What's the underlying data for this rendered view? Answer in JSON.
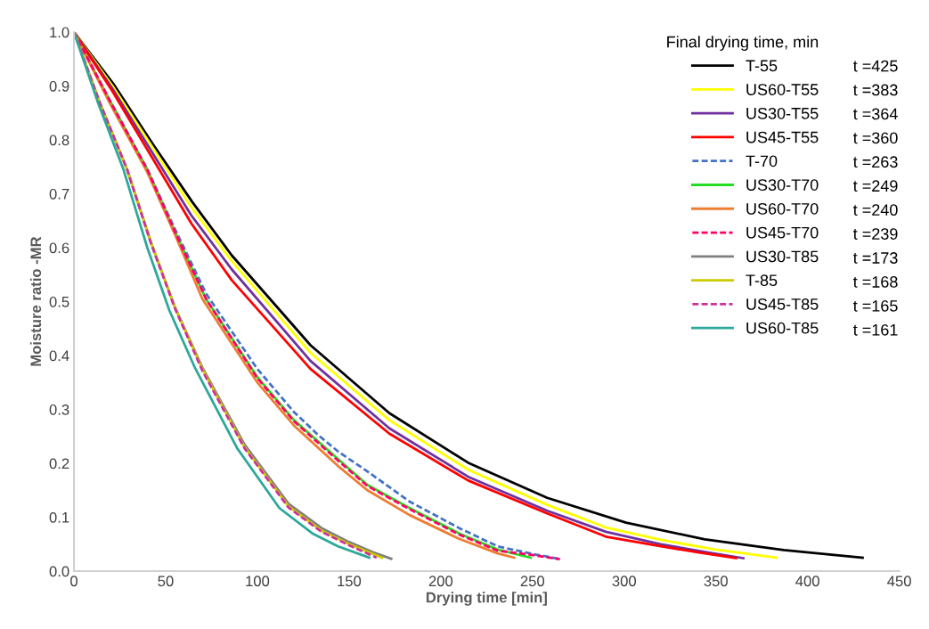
{
  "chart_data": {
    "type": "line",
    "xlabel": "Drying time [min]",
    "ylabel": "Moisture ratio -MR",
    "legend_title": "Final drying time, min",
    "legend": "top right",
    "grid": false,
    "marker": "none",
    "xlim": [
      0,
      450
    ],
    "xticks": [
      0,
      50,
      100,
      150,
      200,
      250,
      300,
      350,
      400,
      450
    ],
    "ylim": [
      0,
      1
    ],
    "yticks": [
      {
        "value": 0,
        "label": "0.0"
      },
      0.1,
      0.2,
      0.3,
      0.4,
      0.5,
      0.6,
      0.7,
      0.8,
      0.9,
      {
        "value": 1,
        "label": "1.0"
      }
    ],
    "annotations": [
      "t =425",
      "t =383",
      "t =364",
      "t =360",
      "t =263",
      "t =249",
      "t =240",
      "t =239",
      "t =173",
      "t =168",
      "t =165",
      "t =161"
    ],
    "series": [
      {
        "name": "T-55",
        "color": "#000000",
        "line_style": "solid",
        "x": [
          0,
          21.5,
          43,
          64.5,
          86,
          129,
          172,
          215,
          258,
          301,
          344,
          387,
          430
        ],
        "values": [
          1,
          0.904,
          0.792,
          0.685,
          0.586,
          0.419,
          0.293,
          0.201,
          0.136,
          0.09,
          0.059,
          0.039,
          0.025
        ]
      },
      {
        "name": "US60-T55",
        "color": "#ffff00",
        "line_style": "solid",
        "x": [
          0,
          21,
          43,
          64,
          86,
          129,
          172,
          215,
          258,
          290,
          320,
          350,
          383
        ],
        "values": [
          1,
          0.9,
          0.785,
          0.675,
          0.575,
          0.405,
          0.28,
          0.188,
          0.123,
          0.081,
          0.058,
          0.04,
          0.025
        ]
      },
      {
        "name": "US30-T55",
        "color": "#7030a0",
        "line_style": "solid",
        "x": [
          0,
          21,
          43,
          64,
          86,
          129,
          172,
          215,
          258,
          290,
          320,
          345,
          365
        ],
        "values": [
          1,
          0.895,
          0.775,
          0.66,
          0.56,
          0.39,
          0.265,
          0.175,
          0.112,
          0.073,
          0.05,
          0.035,
          0.024
        ]
      },
      {
        "name": "US45-T55",
        "color": "#ff0000",
        "line_style": "solid",
        "x": [
          0,
          21,
          43,
          64,
          86,
          129,
          172,
          215,
          258,
          290,
          320,
          340,
          361
        ],
        "values": [
          1,
          0.89,
          0.765,
          0.645,
          0.54,
          0.375,
          0.255,
          0.168,
          0.107,
          0.064,
          0.046,
          0.035,
          0.024
        ]
      },
      {
        "name": "T-70",
        "color": "#4472c4",
        "line_style": "dashed",
        "x": [
          0,
          20,
          40,
          55,
          72,
          100,
          120,
          134,
          144,
          160,
          183,
          210,
          231,
          250,
          264
        ],
        "values": [
          1,
          0.87,
          0.745,
          0.635,
          0.515,
          0.375,
          0.295,
          0.25,
          0.222,
          0.185,
          0.129,
          0.08,
          0.046,
          0.032,
          0.023
        ]
      },
      {
        "name": "US30-T70",
        "color": "#22dd22",
        "line_style": "solid",
        "x": [
          0,
          20,
          40,
          55,
          72,
          100,
          120,
          144,
          160,
          183,
          210,
          231,
          249
        ],
        "values": [
          1,
          0.87,
          0.745,
          0.63,
          0.505,
          0.36,
          0.28,
          0.208,
          0.16,
          0.117,
          0.07,
          0.04,
          0.025
        ]
      },
      {
        "name": "US60-T70",
        "color": "#ed7d31",
        "line_style": "solid",
        "x": [
          0,
          20,
          40,
          55,
          70,
          100,
          120,
          144,
          160,
          183,
          210,
          231,
          240
        ],
        "values": [
          1,
          0.865,
          0.74,
          0.625,
          0.505,
          0.35,
          0.27,
          0.195,
          0.15,
          0.104,
          0.06,
          0.033,
          0.025
        ]
      },
      {
        "name": "US45-T70",
        "color": "#ff0066",
        "line_style": "dashed",
        "x": [
          0,
          20,
          40,
          55,
          72,
          100,
          120,
          144,
          160,
          183,
          210,
          231,
          250,
          265
        ],
        "values": [
          1,
          0.87,
          0.745,
          0.63,
          0.505,
          0.358,
          0.278,
          0.205,
          0.158,
          0.115,
          0.068,
          0.038,
          0.03,
          0.022
        ]
      },
      {
        "name": "US30-T85",
        "color": "#808080",
        "line_style": "solid",
        "x": [
          0,
          14,
          29,
          42,
          55,
          70,
          93,
          117,
          135,
          150,
          163,
          173
        ],
        "values": [
          1,
          0.87,
          0.745,
          0.61,
          0.49,
          0.378,
          0.235,
          0.125,
          0.08,
          0.054,
          0.035,
          0.023
        ]
      },
      {
        "name": "T-85",
        "color": "#cccc00",
        "line_style": "solid",
        "x": [
          0,
          14,
          29,
          42,
          55,
          70,
          93,
          117,
          135,
          150,
          168
        ],
        "values": [
          1,
          0.87,
          0.745,
          0.61,
          0.49,
          0.375,
          0.23,
          0.12,
          0.075,
          0.05,
          0.025
        ]
      },
      {
        "name": "US45-T85",
        "color": "#cc3399",
        "line_style": "dashed",
        "x": [
          0,
          14,
          29,
          42,
          55,
          70,
          93,
          117,
          135,
          150,
          165
        ],
        "values": [
          1,
          0.87,
          0.745,
          0.608,
          0.488,
          0.372,
          0.228,
          0.118,
          0.073,
          0.048,
          0.025
        ]
      },
      {
        "name": "US60-T85",
        "color": "#2ca89a",
        "line_style": "solid",
        "x": [
          0,
          13,
          27,
          40,
          52,
          66,
          89,
          112,
          130,
          144,
          161
        ],
        "values": [
          1,
          0.87,
          0.745,
          0.6,
          0.484,
          0.377,
          0.228,
          0.117,
          0.07,
          0.046,
          0.025
        ]
      }
    ]
  }
}
